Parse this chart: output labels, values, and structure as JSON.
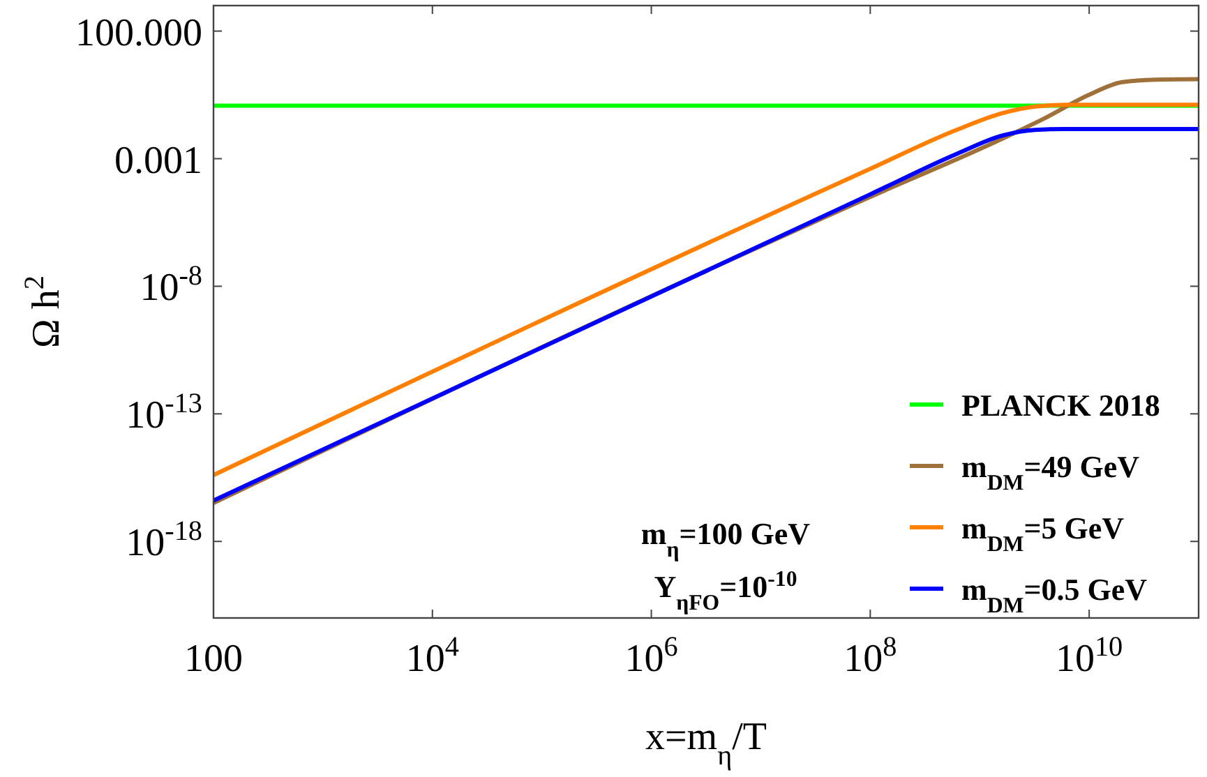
{
  "chart_data": {
    "type": "line",
    "xlabel": "x=m$_{η}$/T",
    "ylabel": "Ω h$^{2}$",
    "log": "xy",
    "grid": false,
    "legend": "bottom right",
    "line_style": "solid",
    "marker": "none",
    "xlim": [
      100,
      100000000000.0
    ],
    "ylim": [
      1e-21,
      1000
    ],
    "xticks": [
      100,
      {
        "value": 10000.0,
        "label": "10$^{4}$"
      },
      {
        "value": 1000000.0,
        "label": "10$^{6}$"
      },
      {
        "value": 100000000.0,
        "label": "10$^{8}$"
      },
      {
        "value": 10000000000.0,
        "label": "10$^{10}$"
      }
    ],
    "yticks": [
      {
        "value": 100,
        "label": "100.000"
      },
      {
        "value": 0.001,
        "label": "0.001"
      },
      {
        "value": 1e-08,
        "label": "10$^{-8}$"
      },
      {
        "value": 1e-13,
        "label": "10$^{-13}$"
      },
      {
        "value": 1e-18,
        "label": "10$^{-18}$"
      }
    ],
    "annotations": [
      "m$_{η}$=100 GeV",
      "Y$_{ηFO}$=10$^{-10}$"
    ],
    "series": [
      {
        "name": "PLANCK 2018",
        "color": "#00ff00",
        "x": [
          100,
          100000000000.0
        ],
        "values": [
          0.12,
          0.12
        ]
      },
      {
        "name": "m$_{DM}$=49 GeV",
        "color": "#a0703a",
        "x": [
          100,
          100000000.0,
          1600000000.0,
          4000000000.0,
          10000000000.0,
          20000000000.0,
          40000000000.0,
          100000000000.0
        ],
        "values": [
          3.2e-17,
          3.2e-05,
          0.006,
          0.04,
          0.32,
          1.0,
          1.25,
          1.3
        ]
      },
      {
        "name": "m$_{DM}$=5 GeV",
        "color": "#ff8000",
        "x": [
          100,
          100000000.0,
          630000000.0,
          1600000000.0,
          3200000000.0,
          6300000000.0,
          100000000000.0
        ],
        "values": [
          4e-16,
          0.0004,
          0.014,
          0.06,
          0.11,
          0.13,
          0.13
        ]
      },
      {
        "name": "m$_{DM}$=0.5 GeV",
        "color": "#0000ff",
        "x": [
          100,
          100000000.0,
          630000000.0,
          1600000000.0,
          3200000000.0,
          6300000000.0,
          100000000000.0
        ],
        "values": [
          4e-17,
          4e-05,
          0.0016,
          0.008,
          0.0135,
          0.0145,
          0.0145
        ]
      }
    ]
  }
}
